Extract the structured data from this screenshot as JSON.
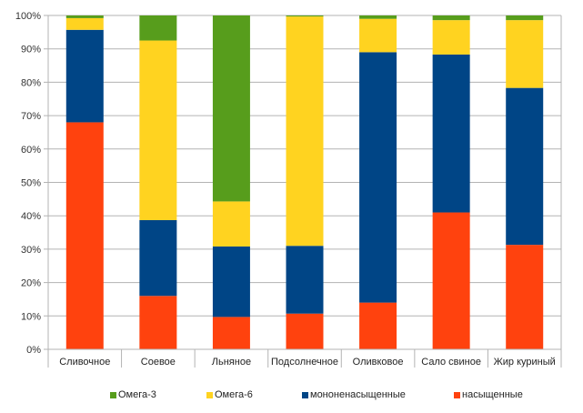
{
  "chart_data": {
    "type": "bar",
    "stacked": "percent",
    "title": "",
    "xlabel": "",
    "ylabel": "",
    "ylim": [
      0,
      100
    ],
    "yticks": [
      "0%",
      "10%",
      "20%",
      "30%",
      "40%",
      "50%",
      "60%",
      "70%",
      "80%",
      "90%",
      "100%"
    ],
    "grid": true,
    "legend_position": "bottom",
    "categories": [
      "Сливочное",
      "Соевое",
      "Льняное",
      "Подсолнечное",
      "Оливковое",
      "Сало свиное",
      "Жир куриный"
    ],
    "series": [
      {
        "name": "насыщенные",
        "color": "#ff420e",
        "values": [
          68,
          16,
          9.7,
          10.7,
          14,
          41,
          31.3
        ]
      },
      {
        "name": "мононенасыщенные",
        "color": "#004586",
        "values": [
          27.7,
          22.7,
          21.1,
          20.3,
          75,
          47.3,
          47
        ]
      },
      {
        "name": "Омега-6",
        "color": "#ffd320",
        "values": [
          3.5,
          53.8,
          13.5,
          68.7,
          10,
          10.3,
          20.3
        ]
      },
      {
        "name": "Омега-3",
        "color": "#579d1c",
        "values": [
          0.8,
          7.5,
          55.7,
          0.3,
          1,
          1.4,
          1.4
        ]
      }
    ],
    "legend": [
      "Омега-3",
      "Омега-6",
      "мононенасыщенные",
      "насыщенные"
    ]
  }
}
